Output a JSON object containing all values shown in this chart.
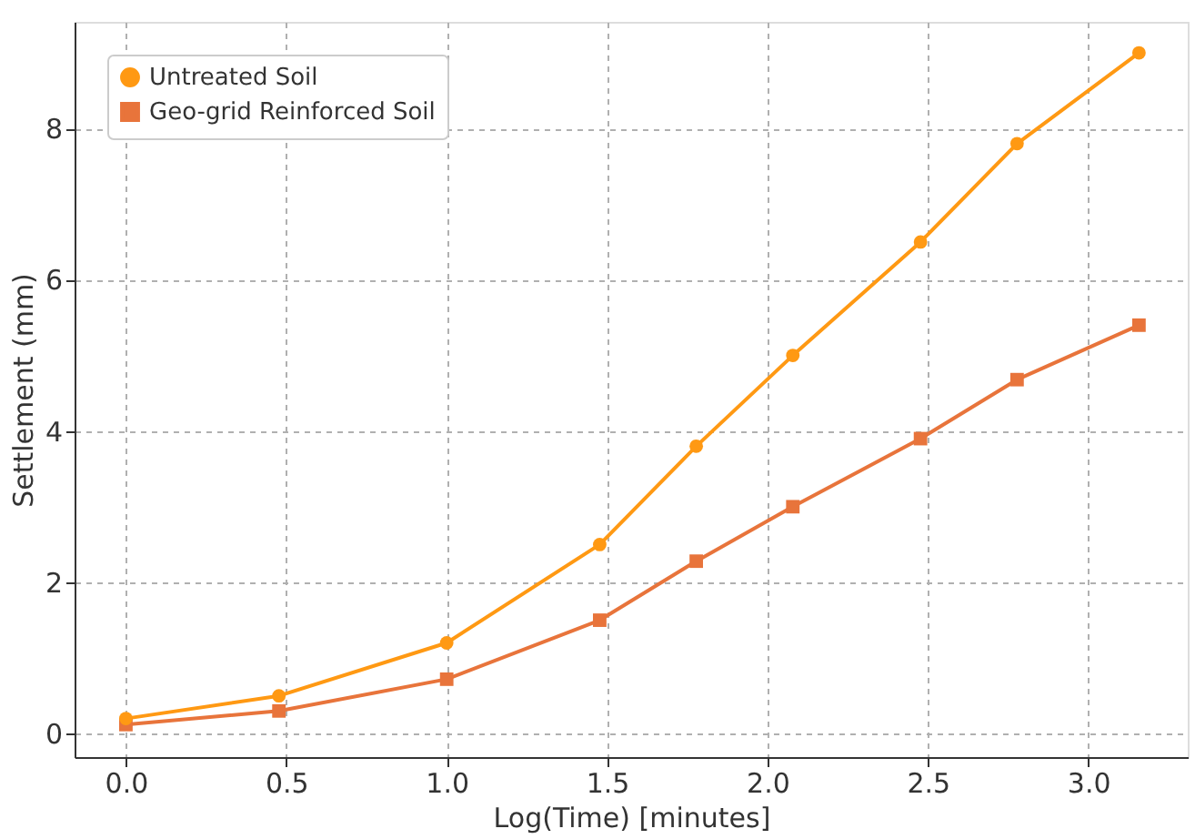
{
  "chart_data": {
    "type": "line",
    "xlabel": "Log(Time) [minutes]",
    "ylabel": "Settlement (mm)",
    "x": [
      0.0,
      0.477,
      1.0,
      1.477,
      1.778,
      2.079,
      2.477,
      2.778,
      3.158
    ],
    "series": [
      {
        "name": "Untreated Soil",
        "color": "#ff9913",
        "marker": "circle",
        "values": [
          0.2,
          0.5,
          1.2,
          2.5,
          3.8,
          5.0,
          6.5,
          7.8,
          9.0
        ]
      },
      {
        "name": "Geo-grid Reinforced Soil",
        "color": "#e8743b",
        "marker": "square",
        "values": [
          0.12,
          0.3,
          0.72,
          1.5,
          2.28,
          3.0,
          3.9,
          4.68,
          5.4
        ]
      }
    ],
    "xlim": [
      -0.16,
      3.31
    ],
    "ylim": [
      -0.31,
      9.41
    ],
    "xticks": [
      {
        "value": 0,
        "label": "0.0"
      },
      {
        "value": 0.5,
        "label": "0.5"
      },
      {
        "value": 1,
        "label": "1.0"
      },
      {
        "value": 1.5,
        "label": "1.5"
      },
      {
        "value": 2,
        "label": "2.0"
      },
      {
        "value": 2.5,
        "label": "2.5"
      },
      {
        "value": 3,
        "label": "3.0"
      }
    ],
    "yticks": [
      0,
      2,
      4,
      6,
      8
    ],
    "grid": true,
    "legend": "top left",
    "line_style": "solid"
  }
}
